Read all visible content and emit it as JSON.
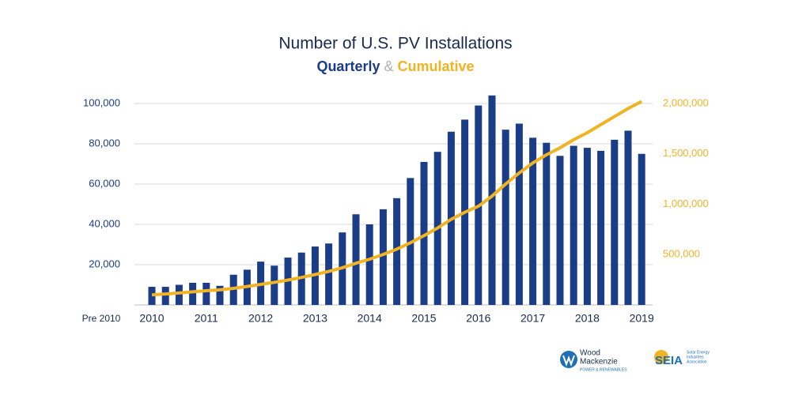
{
  "chart_data": {
    "type": "bar_line",
    "title": "Number of U.S. PV Installations",
    "subtitle_separator": "&",
    "categories": [
      "Pre 2010",
      "2010",
      null,
      null,
      null,
      "2011",
      null,
      null,
      null,
      "2012",
      null,
      null,
      null,
      "2013",
      null,
      null,
      null,
      "2014",
      null,
      null,
      null,
      "2015",
      null,
      null,
      null,
      "2016",
      null,
      null,
      null,
      "2017",
      null,
      null,
      null,
      "2018",
      null,
      null,
      null,
      "2019"
    ],
    "series": [
      {
        "name": "Quarterly",
        "type": "bar",
        "color": "#1b3c87",
        "axis": "y",
        "values": [
          null,
          9000,
          9000,
          10000,
          11000,
          11000,
          9500,
          15000,
          17500,
          21500,
          19500,
          23500,
          26000,
          29000,
          30500,
          36000,
          45000,
          40000,
          47500,
          53000,
          63000,
          71000,
          76000,
          86000,
          92000,
          99000,
          104000,
          87000,
          90000,
          83000,
          80500,
          74000,
          79000,
          78000,
          76500,
          82000,
          86500,
          75000
        ]
      },
      {
        "name": "Cumulative",
        "type": "line",
        "color": "#f0b323",
        "axis": "y2",
        "values": [
          null,
          100000,
          109000,
          119000,
          130000,
          141000,
          150000,
          165000,
          183000,
          204000,
          224000,
          247000,
          273000,
          302000,
          333000,
          369000,
          414000,
          454000,
          501000,
          554000,
          617000,
          688000,
          764000,
          850000,
          920000,
          980000,
          1080000,
          1200000,
          1310000,
          1410000,
          1490000,
          1560000,
          1640000,
          1710000,
          1790000,
          1870000,
          1950000,
          2020000
        ]
      }
    ],
    "ylim": [
      0,
      105000
    ],
    "yticks": [
      {
        "value": 20000,
        "label": "20,000"
      },
      {
        "value": 40000,
        "label": "40,000"
      },
      {
        "value": 60000,
        "label": "60,000"
      },
      {
        "value": 80000,
        "label": "80,000"
      },
      {
        "value": 100000,
        "label": "100,000"
      }
    ],
    "y2lim": [
      0,
      2100000
    ],
    "y2ticks": [
      {
        "value": 500000,
        "label": "500,000"
      },
      {
        "value": 1000000,
        "label": "1,000,000"
      },
      {
        "value": 1500000,
        "label": "1,500,000"
      },
      {
        "value": 2000000,
        "label": "2,000,000"
      }
    ],
    "grid": true
  },
  "logos": {
    "wood_mackenzie": [
      "Wood",
      "Mackenzie",
      "POWER & RENEWABLES"
    ],
    "seia": [
      "SEIA",
      "Solar Energy",
      "Industries",
      "Association"
    ]
  }
}
